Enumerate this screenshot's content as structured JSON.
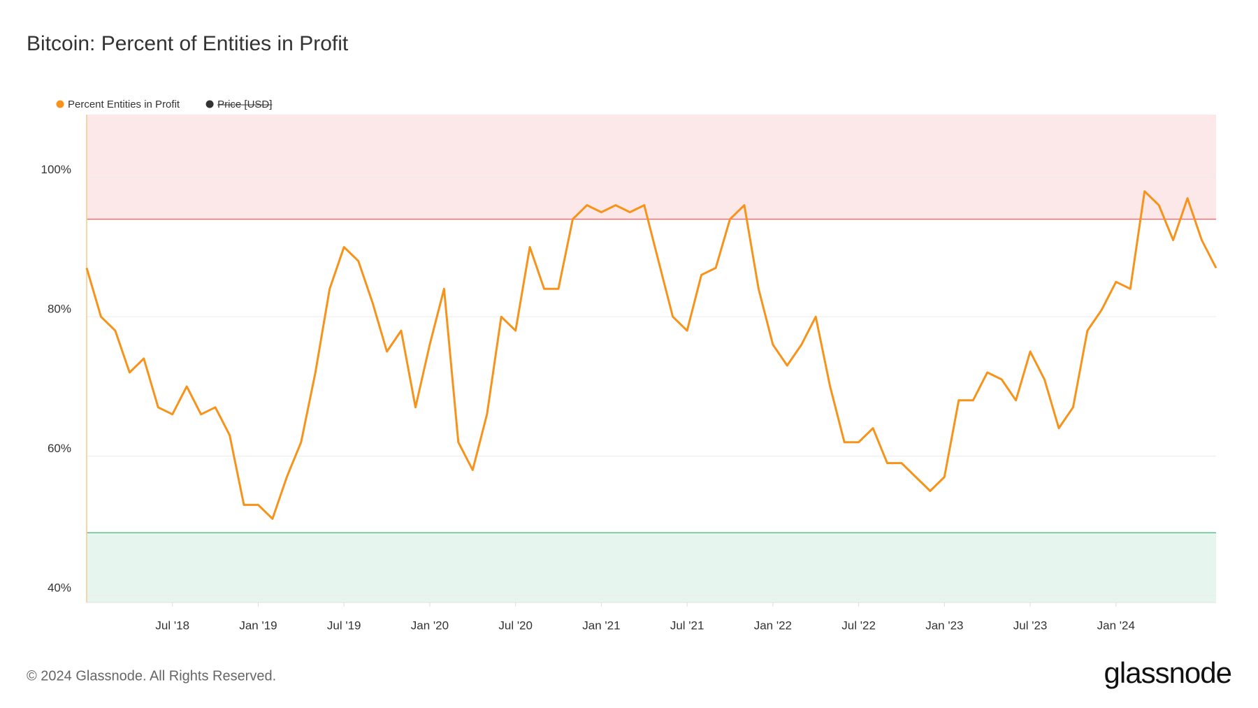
{
  "chart_data": {
    "type": "line",
    "title": "Bitcoin: Percent of Entities in Profit",
    "x": [
      "2018-01",
      "2018-02",
      "2018-03",
      "2018-04",
      "2018-05",
      "2018-06",
      "2018-07",
      "2018-08",
      "2018-09",
      "2018-10",
      "2018-11",
      "2018-12",
      "2019-01",
      "2019-02",
      "2019-03",
      "2019-04",
      "2019-05",
      "2019-06",
      "2019-07",
      "2019-08",
      "2019-09",
      "2019-10",
      "2019-11",
      "2019-12",
      "2020-01",
      "2020-02",
      "2020-03",
      "2020-04",
      "2020-05",
      "2020-06",
      "2020-07",
      "2020-08",
      "2020-09",
      "2020-10",
      "2020-11",
      "2020-12",
      "2021-01",
      "2021-02",
      "2021-03",
      "2021-04",
      "2021-05",
      "2021-06",
      "2021-07",
      "2021-08",
      "2021-09",
      "2021-10",
      "2021-11",
      "2021-12",
      "2022-01",
      "2022-02",
      "2022-03",
      "2022-04",
      "2022-05",
      "2022-06",
      "2022-07",
      "2022-08",
      "2022-09",
      "2022-10",
      "2022-11",
      "2022-12",
      "2023-01",
      "2023-02",
      "2023-03",
      "2023-04",
      "2023-05",
      "2023-06",
      "2023-07",
      "2023-08",
      "2023-09",
      "2023-10",
      "2023-11",
      "2023-12",
      "2024-01",
      "2024-02",
      "2024-03",
      "2024-04",
      "2024-05",
      "2024-06",
      "2024-07",
      "2024-08"
    ],
    "series": [
      {
        "name": "Percent Entities in Profit",
        "color": "#f7931a",
        "values": [
          87,
          80,
          78,
          72,
          74,
          67,
          66,
          70,
          66,
          67,
          63,
          53,
          53,
          51,
          57,
          62,
          72,
          84,
          90,
          88,
          82,
          75,
          78,
          67,
          76,
          84,
          62,
          58,
          66,
          80,
          78,
          90,
          84,
          84,
          94,
          96,
          95,
          96,
          95,
          96,
          88,
          80,
          78,
          86,
          87,
          94,
          96,
          84,
          76,
          73,
          76,
          80,
          70,
          62,
          62,
          64,
          59,
          59,
          57,
          55,
          57,
          68,
          68,
          72,
          71,
          68,
          75,
          71,
          64,
          67,
          78,
          81,
          85,
          84,
          98,
          96,
          91,
          97,
          91,
          87
        ]
      }
    ],
    "legend_extra": [
      {
        "name": "Price [USD]",
        "color": "#333333",
        "hidden": true
      }
    ],
    "xlim": [
      "2018-01",
      "2024-08"
    ],
    "xticks": [
      {
        "value": "2018-07",
        "label": "Jul '18"
      },
      {
        "value": "2019-01",
        "label": "Jan '19"
      },
      {
        "value": "2019-07",
        "label": "Jul '19"
      },
      {
        "value": "2020-01",
        "label": "Jan '20"
      },
      {
        "value": "2020-07",
        "label": "Jul '20"
      },
      {
        "value": "2021-01",
        "label": "Jan '21"
      },
      {
        "value": "2021-07",
        "label": "Jul '21"
      },
      {
        "value": "2022-01",
        "label": "Jan '22"
      },
      {
        "value": "2022-07",
        "label": "Jul '22"
      },
      {
        "value": "2023-01",
        "label": "Jan '23"
      },
      {
        "value": "2023-07",
        "label": "Jul '23"
      },
      {
        "value": "2024-01",
        "label": "Jan '24"
      }
    ],
    "ylim": [
      39,
      109
    ],
    "yticks": [
      {
        "value": 40,
        "label": "40%"
      },
      {
        "value": 60,
        "label": "60%"
      },
      {
        "value": 80,
        "label": "80%"
      },
      {
        "value": 100,
        "label": "100%"
      }
    ],
    "grid": true,
    "upper_band": {
      "value": 94,
      "line_color": "#e57373",
      "fill": "#fde8e9"
    },
    "lower_band": {
      "value": 49,
      "line_color": "#5cc08a",
      "fill": "#e6f6ee"
    },
    "legend_position": "top-left"
  },
  "footer": {
    "copyright": "© 2024 Glassnode. All Rights Reserved.",
    "logo": "glassnode"
  }
}
